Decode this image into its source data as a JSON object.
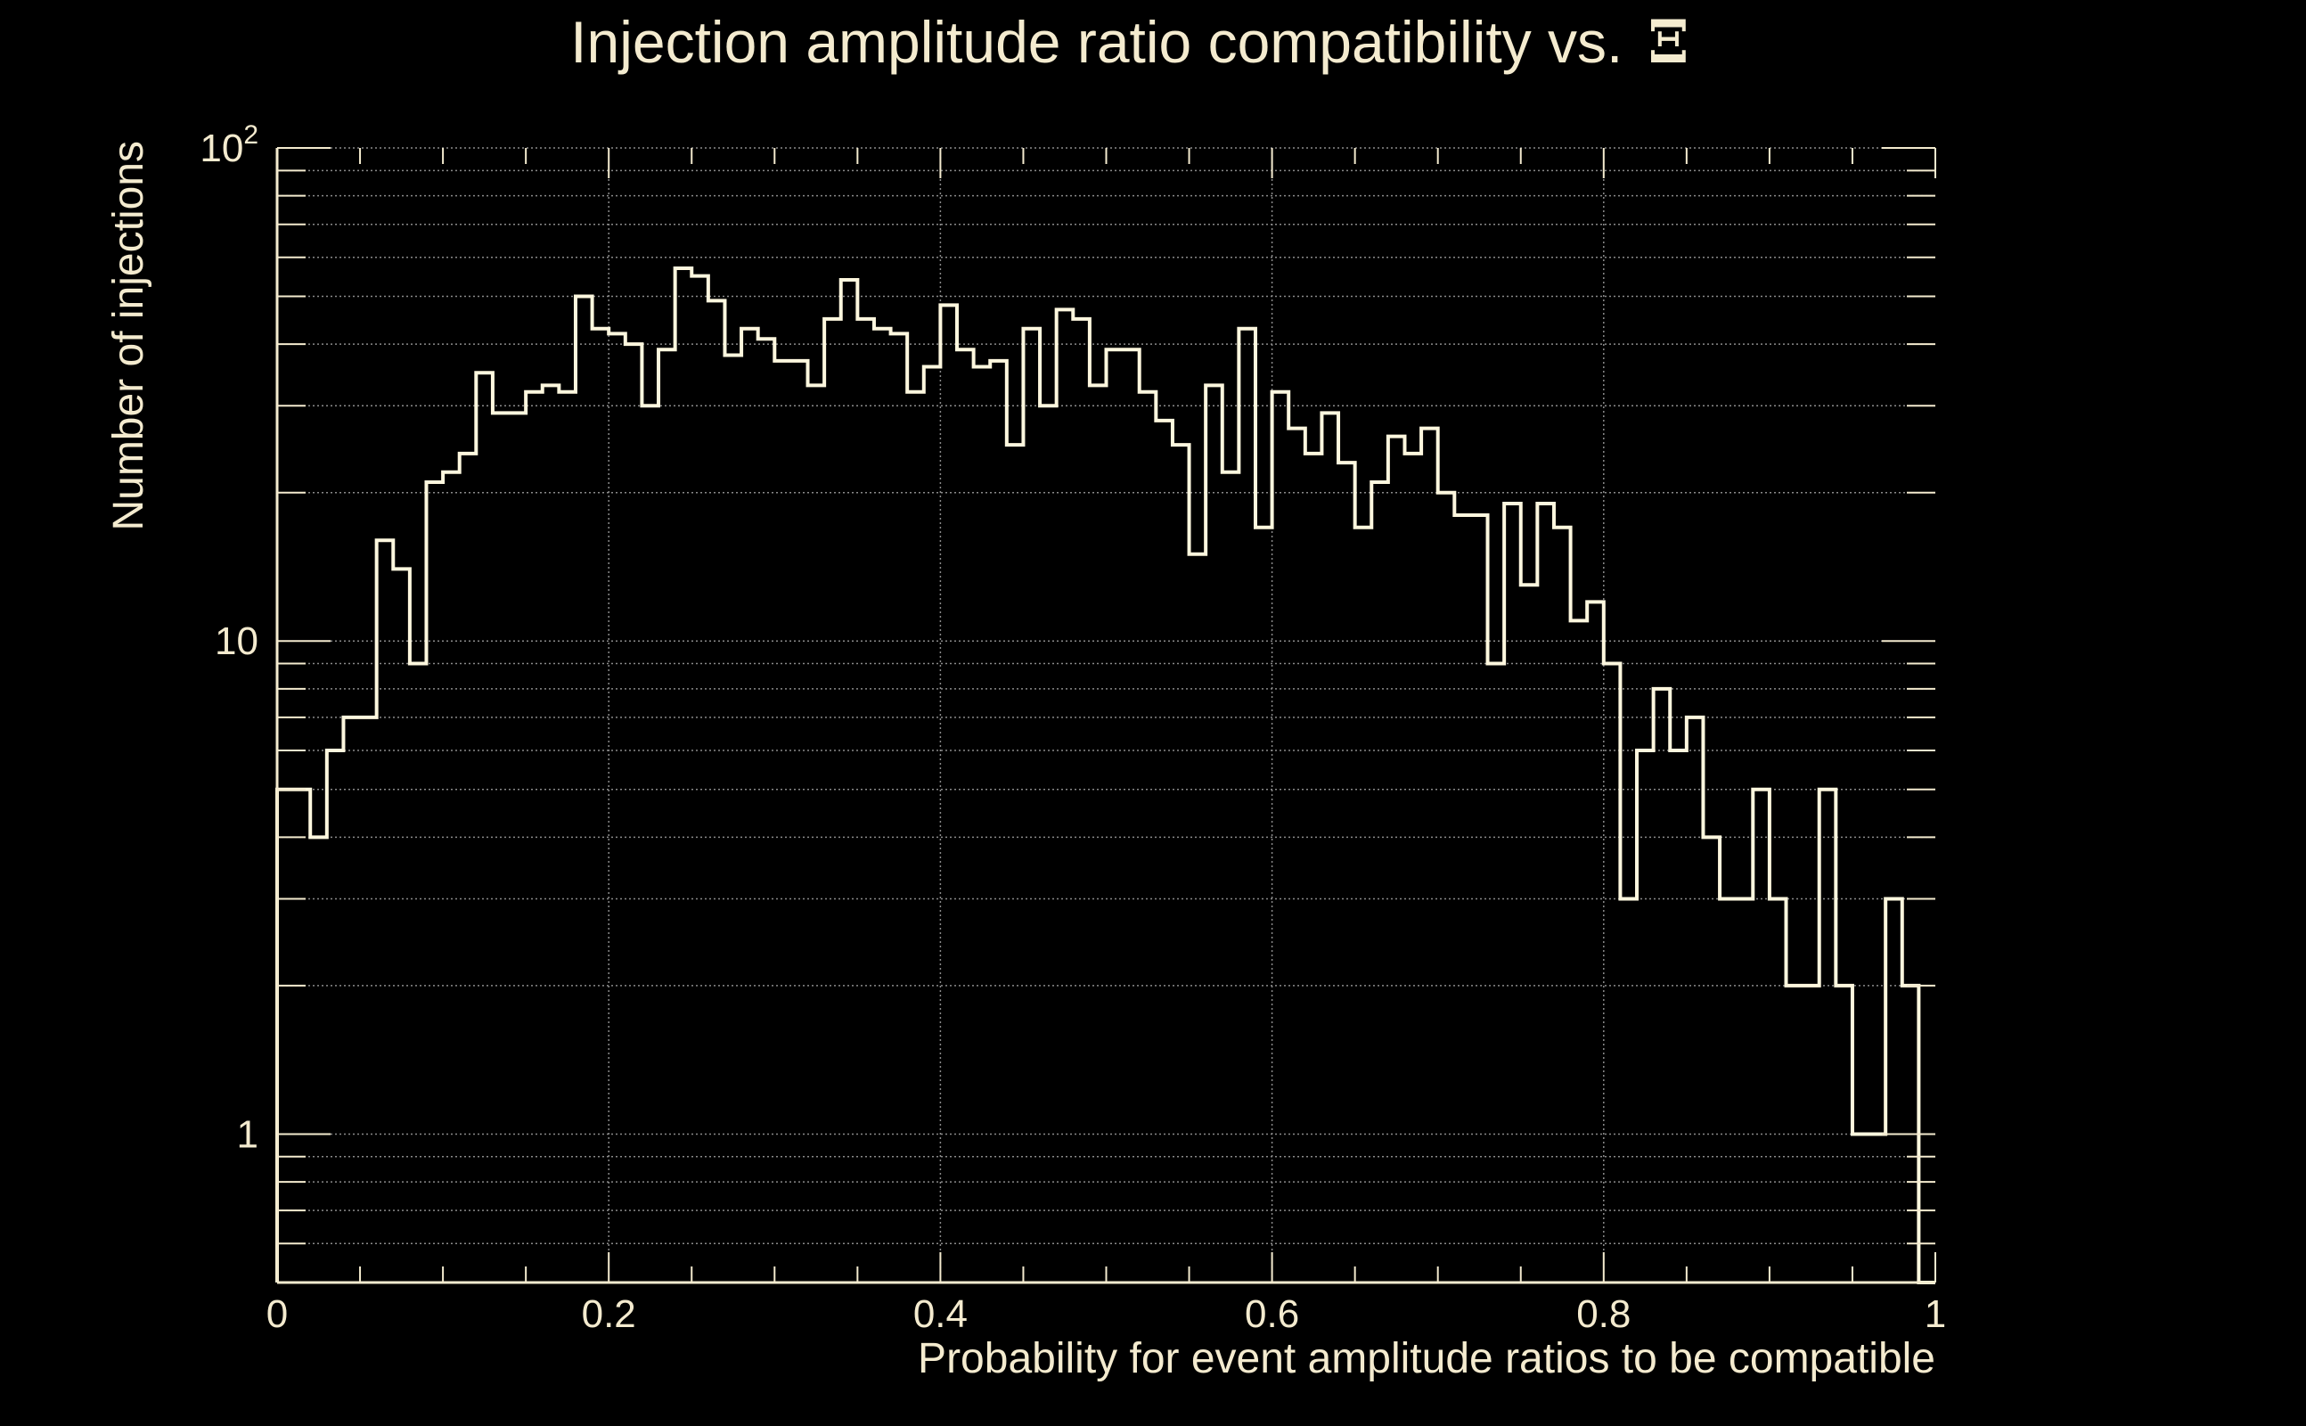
{
  "chart_data": {
    "type": "histogram",
    "title": "Injection amplitude ratio compatibility vs.",
    "title_symbol": "Ξ",
    "xlabel": "Probability for event amplitude ratios to be compatible",
    "ylabel": "Number of injections",
    "xlim": [
      0,
      1
    ],
    "ylim": [
      0.5,
      100
    ],
    "y_scale": "log",
    "grid": true,
    "bin_width": 0.01,
    "x_ticks": [
      0,
      0.2,
      0.4,
      0.6,
      0.8,
      1
    ],
    "x_tick_labels": [
      "0",
      "0.2",
      "0.4",
      "0.6",
      "0.8",
      "1"
    ],
    "y_ticks": [
      1,
      10,
      100
    ],
    "y_tick_labels": [
      {
        "base": "1",
        "exp": ""
      },
      {
        "base": "10",
        "exp": ""
      },
      {
        "base": "10",
        "exp": "2"
      }
    ],
    "values": [
      5,
      5,
      4,
      6,
      7,
      7,
      16,
      14,
      9,
      21,
      22,
      24,
      35,
      29,
      29,
      32,
      33,
      32,
      50,
      43,
      42,
      40,
      30,
      39,
      57,
      55,
      49,
      38,
      43,
      41,
      37,
      37,
      33,
      45,
      54,
      45,
      43,
      42,
      32,
      36,
      48,
      39,
      36,
      37,
      25,
      43,
      30,
      47,
      45,
      33,
      39,
      39,
      32,
      28,
      25,
      15,
      33,
      22,
      43,
      17,
      32,
      27,
      24,
      29,
      23,
      17,
      21,
      26,
      24,
      27,
      20,
      18,
      18,
      9,
      19,
      13,
      19,
      17,
      11,
      12,
      9,
      3,
      6,
      8,
      6,
      7,
      4,
      3,
      3,
      5,
      3,
      2,
      2,
      5,
      2,
      1,
      1,
      3,
      2,
      0.5
    ],
    "colors": {
      "background": "#000000",
      "foreground": "#f4ebcf",
      "line": "#fdf7de",
      "grid": "#8a8a8a"
    }
  }
}
